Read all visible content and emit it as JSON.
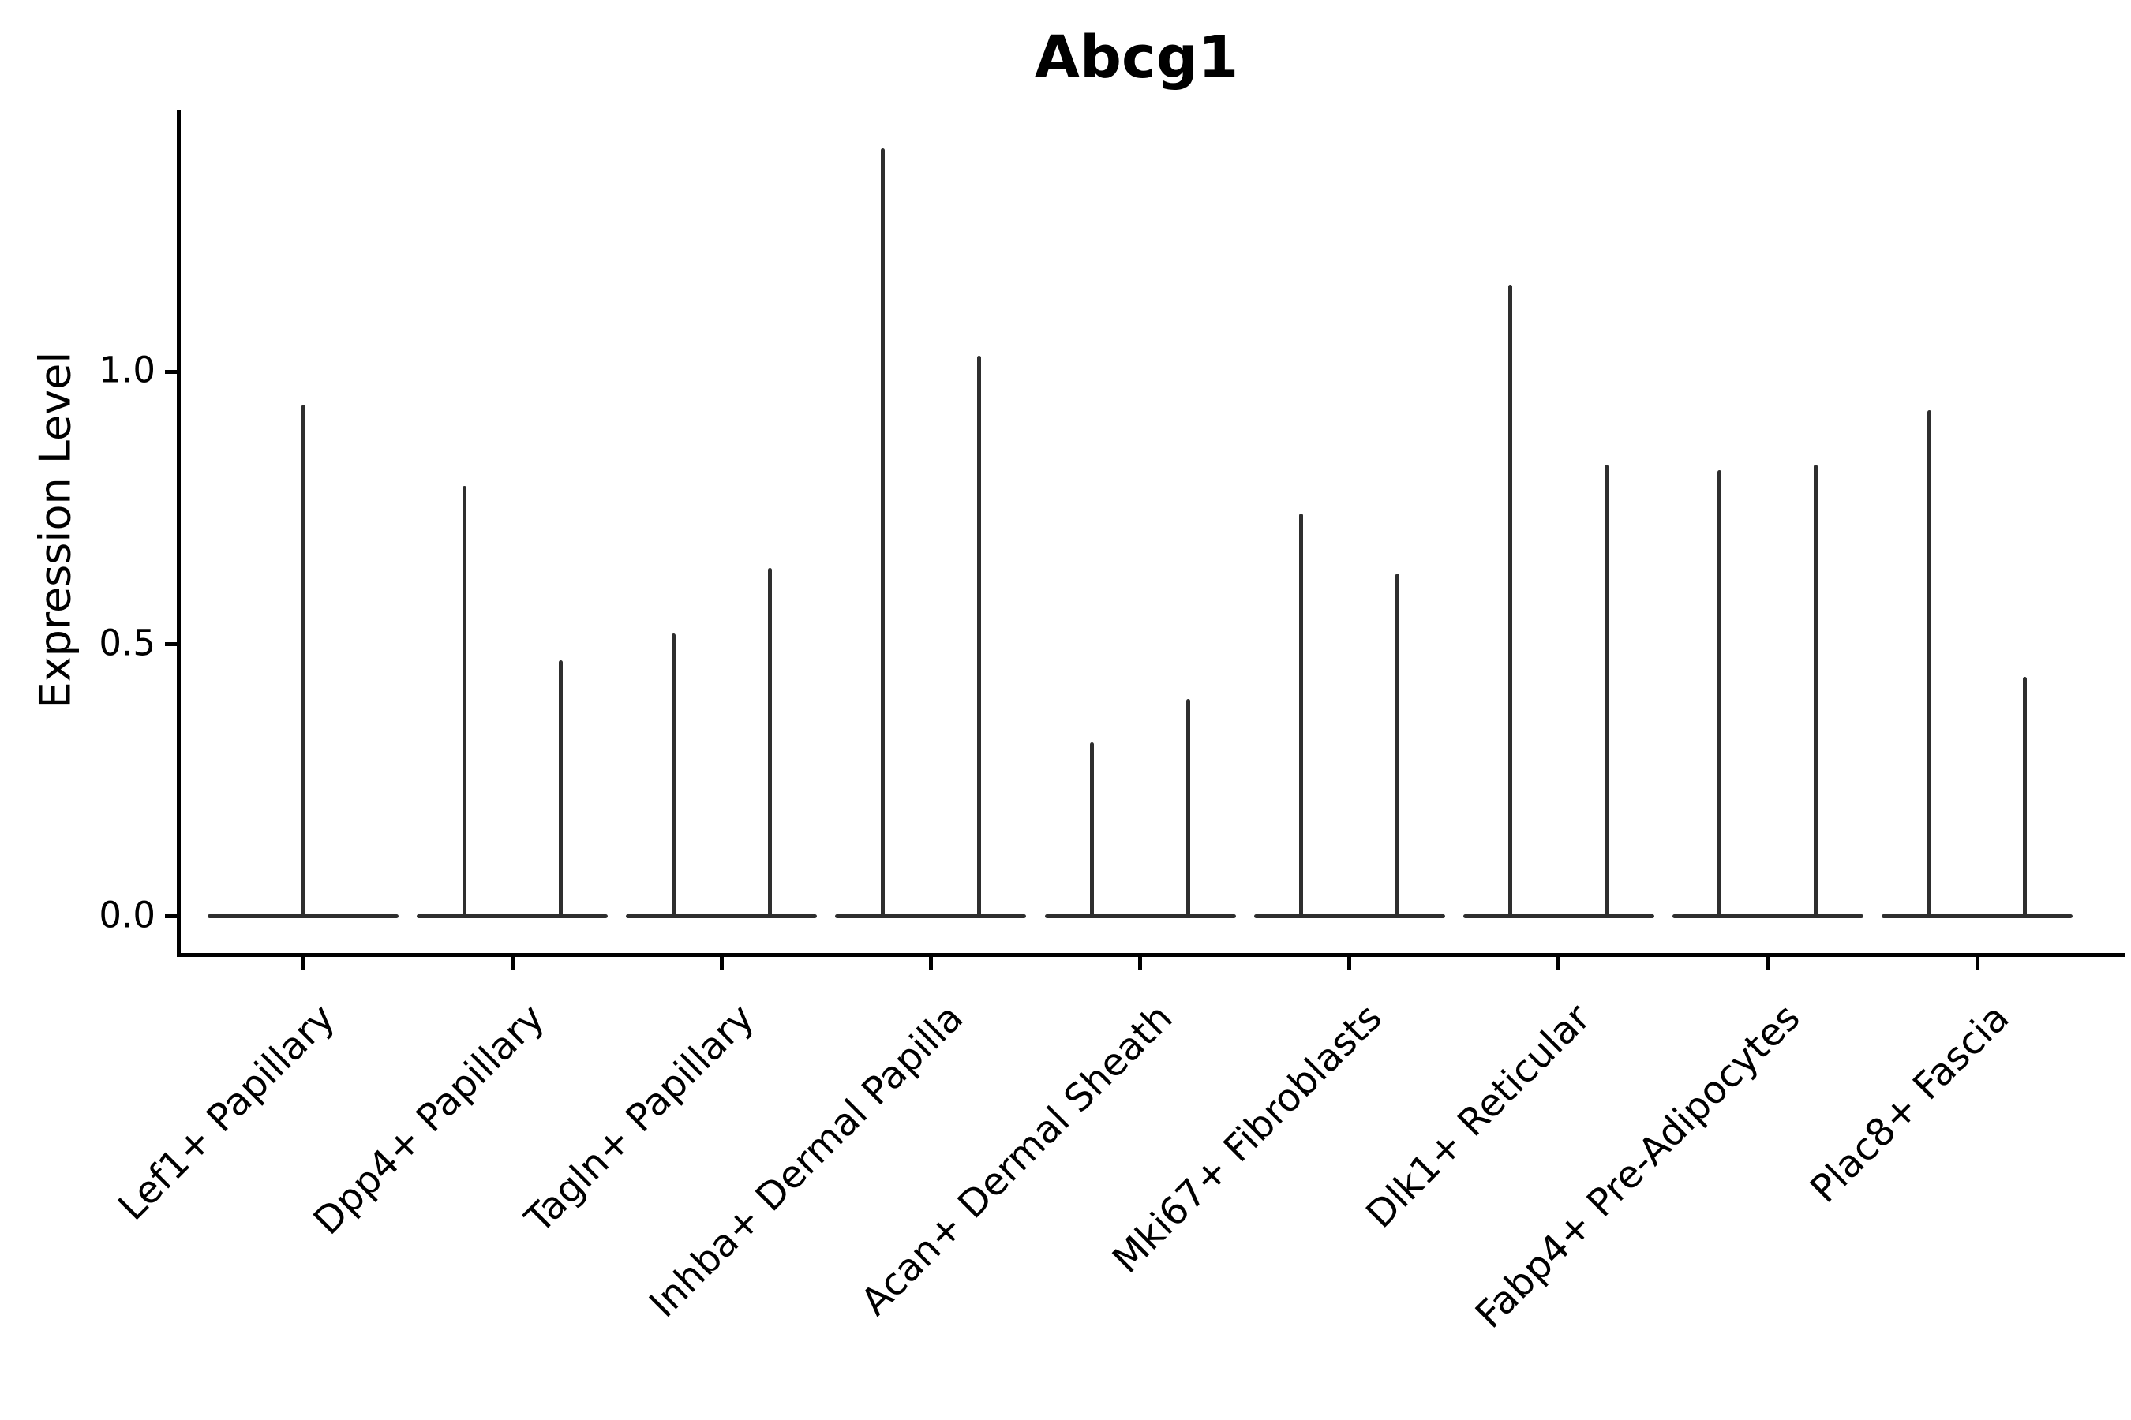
{
  "chart_data": {
    "type": "violin",
    "title": "Abcg1",
    "xlabel": "",
    "ylabel": "Expression Level",
    "ylim": [
      -0.07,
      1.48
    ],
    "grid": false,
    "legend": "none",
    "stroke_color": "#2e2e2e",
    "axis_color": "#000000",
    "yticks": [
      {
        "value": 0.0,
        "label": "0.0"
      },
      {
        "value": 0.5,
        "label": "0.5"
      },
      {
        "value": 1.0,
        "label": "1.0"
      }
    ],
    "categories": [
      "Lef1+ Papillary",
      "Dpp4+ Papillary",
      "Tagln+ Papillary",
      "Inhba+ Dermal Papilla",
      "Acan+ Dermal Sheath",
      "Mki67+ Fibroblasts",
      "Dlk1+ Reticular",
      "Fabp4+ Pre-Adipocytes",
      "Plac8+ Fascia"
    ],
    "violins": [
      {
        "category": "Lef1+ Papillary",
        "spikes": [
          {
            "offset": 0,
            "max": 0.94
          }
        ]
      },
      {
        "category": "Dpp4+ Papillary",
        "spikes": [
          {
            "offset": -0.23,
            "max": 0.79
          },
          {
            "offset": 0.23,
            "max": 0.47
          }
        ]
      },
      {
        "category": "Tagln+ Papillary",
        "spikes": [
          {
            "offset": -0.23,
            "max": 0.52
          },
          {
            "offset": 0.23,
            "max": 0.64
          }
        ]
      },
      {
        "category": "Inhba+ Dermal Papilla",
        "spikes": [
          {
            "offset": -0.23,
            "max": 1.41
          },
          {
            "offset": 0.23,
            "max": 1.03
          }
        ]
      },
      {
        "category": "Acan+ Dermal Sheath",
        "spikes": [
          {
            "offset": -0.23,
            "max": 0.32
          },
          {
            "offset": 0.23,
            "max": 0.4
          }
        ]
      },
      {
        "category": "Mki67+ Fibroblasts",
        "spikes": [
          {
            "offset": -0.23,
            "max": 0.74
          },
          {
            "offset": 0.23,
            "max": 0.63
          }
        ]
      },
      {
        "category": "Dlk1+ Reticular",
        "spikes": [
          {
            "offset": -0.23,
            "max": 1.16
          },
          {
            "offset": 0.23,
            "max": 0.83
          }
        ]
      },
      {
        "category": "Fabp4+ Pre-Adipocytes",
        "spikes": [
          {
            "offset": -0.23,
            "max": 0.82
          },
          {
            "offset": 0.23,
            "max": 0.83
          }
        ]
      },
      {
        "category": "Plac8+ Fascia",
        "spikes": [
          {
            "offset": -0.23,
            "max": 0.93
          },
          {
            "offset": 0.23,
            "max": 0.44
          }
        ]
      }
    ]
  }
}
